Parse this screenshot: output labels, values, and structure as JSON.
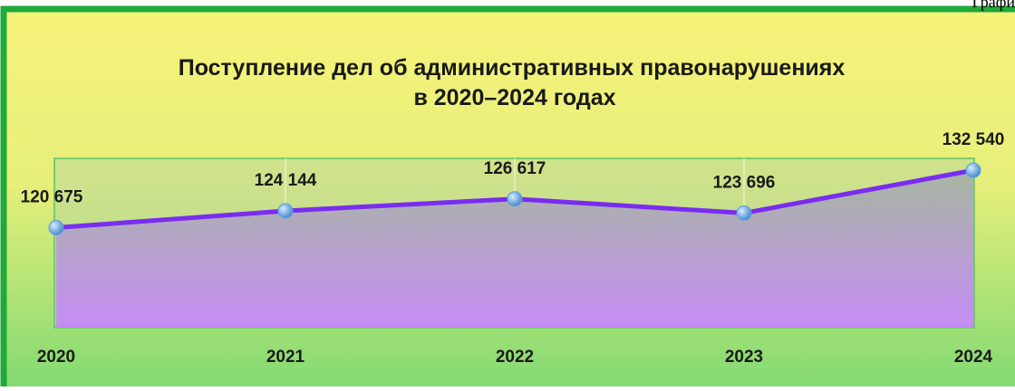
{
  "page_label": "Графи",
  "chart_data": {
    "type": "line",
    "title": [
      "Поступление дел об административных правонарушениях",
      "в 2020–2024 годах"
    ],
    "categories": [
      "2020",
      "2021",
      "2022",
      "2023",
      "2024"
    ],
    "values": [
      120675,
      124144,
      126617,
      123696,
      132540
    ],
    "value_labels": [
      "120 675",
      "124 144",
      "126 617",
      "123 696",
      "132 540"
    ],
    "color": "#7a2cf0",
    "marker_color": "#5aa0e0",
    "ylim": [
      100000,
      135000
    ],
    "grid": true
  }
}
